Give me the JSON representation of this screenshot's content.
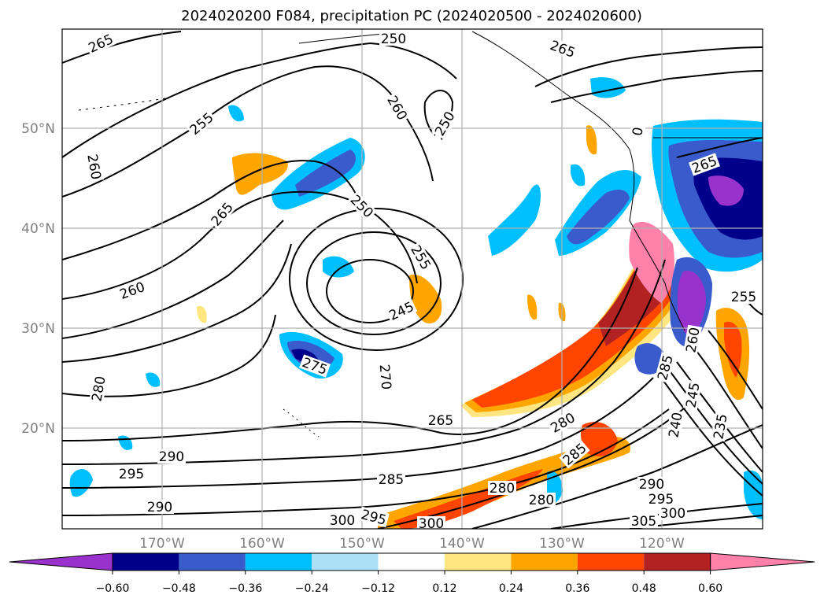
{
  "title": "2024020200 F084, precipitation PC (2024020500 - 2024020600)",
  "map": {
    "lat_labels": [
      "50°N",
      "40°N",
      "30°N",
      "20°N"
    ],
    "lon_labels": [
      "170°W",
      "160°W",
      "150°W",
      "140°W",
      "130°W",
      "120°W"
    ],
    "gridlines": true,
    "lon_range_deg": [
      -178,
      -108
    ],
    "lat_range_deg": [
      10,
      60
    ],
    "contour_labels": [
      "265",
      "255",
      "265",
      "255",
      "260",
      "250",
      "250",
      "260",
      "265",
      "260",
      "250",
      "255",
      "245",
      "270",
      "275",
      "280",
      "265",
      "280",
      "285",
      "290",
      "295",
      "290",
      "295",
      "285",
      "280",
      "280",
      "285",
      "290",
      "295",
      "300",
      "305",
      "300",
      "300",
      "240",
      "245",
      "235",
      "255",
      "265",
      "260",
      "0"
    ],
    "shading_colors": [
      "#9932CC",
      "#00008B",
      "#3A5BCC",
      "#00BFFF",
      "#ADE0F7",
      "#FFFFFF",
      "#FFE680",
      "#FFA500",
      "#FF4500",
      "#B22222",
      "#FF80A8"
    ]
  },
  "colorbar": {
    "levels": [
      "−0.60",
      "−0.48",
      "−0.36",
      "−0.24",
      "−0.12",
      "0.12",
      "0.24",
      "0.36",
      "0.48",
      "0.60"
    ],
    "colors": [
      "#9932CC",
      "#00008B",
      "#3A5BCC",
      "#00BFFF",
      "#ADE0F7",
      "#FFFFFF",
      "#FFE680",
      "#FFA500",
      "#FF4500",
      "#B22222",
      "#FF80A8"
    ],
    "extend": "both"
  }
}
